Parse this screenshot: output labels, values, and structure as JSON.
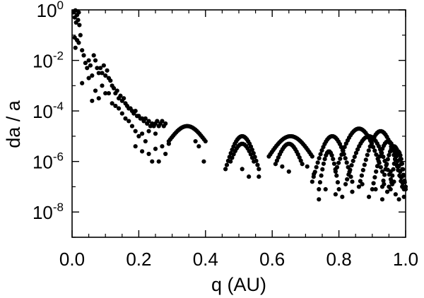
{
  "chart_data": {
    "type": "scatter",
    "title": "",
    "xlabel": "q (AU)",
    "ylabel": "da / a",
    "xlim": [
      0.0,
      1.0
    ],
    "ylim_log10": [
      -9,
      0
    ],
    "y_scale": "log",
    "grid": false,
    "legend": "none",
    "marker_color": "#000000",
    "x_ticks": [
      {
        "value": 0.0,
        "label": "0.0"
      },
      {
        "value": 0.2,
        "label": "0.2"
      },
      {
        "value": 0.4,
        "label": "0.4"
      },
      {
        "value": 0.6,
        "label": "0.6"
      },
      {
        "value": 0.8,
        "label": "0.8"
      },
      {
        "value": 1.0,
        "label": "1.0"
      }
    ],
    "y_ticks": [
      {
        "exp": 0,
        "base": "10",
        "power": "0"
      },
      {
        "exp": -2,
        "base": "10",
        "power": "-2"
      },
      {
        "exp": -4,
        "base": "10",
        "power": "-4"
      },
      {
        "exp": -6,
        "base": "10",
        "power": "-6"
      },
      {
        "exp": -8,
        "base": "10",
        "power": "-8"
      }
    ],
    "series": [
      {
        "points": [
          [
            0.005,
            -0.1
          ],
          [
            0.008,
            -0.3
          ],
          [
            0.01,
            -0.02
          ],
          [
            0.012,
            -0.5
          ],
          [
            0.015,
            -0.2
          ],
          [
            0.018,
            -0.4
          ],
          [
            0.02,
            -0.1
          ],
          [
            0.022,
            -0.6
          ],
          [
            0.008,
            -1.1
          ],
          [
            0.01,
            -1.5
          ],
          [
            0.015,
            -1.2
          ],
          [
            0.02,
            -1.3
          ],
          [
            0.025,
            -1.0
          ],
          [
            0.03,
            -1.6
          ],
          [
            0.035,
            -1.8
          ],
          [
            0.04,
            -2.1
          ],
          [
            0.045,
            -2.3
          ],
          [
            0.05,
            -2.0
          ],
          [
            0.055,
            -2.2
          ],
          [
            0.06,
            -2.6
          ],
          [
            0.065,
            -1.8
          ],
          [
            0.07,
            -2.0
          ],
          [
            0.075,
            -2.3
          ],
          [
            0.08,
            -2.5
          ],
          [
            0.085,
            -2.3
          ],
          [
            0.09,
            -2.5
          ],
          [
            0.095,
            -2.2
          ],
          [
            0.1,
            -2.6
          ],
          [
            0.105,
            -2.4
          ],
          [
            0.11,
            -2.7
          ],
          [
            0.115,
            -2.8
          ],
          [
            0.12,
            -3.0
          ],
          [
            0.125,
            -3.1
          ],
          [
            0.13,
            -3.3
          ],
          [
            0.135,
            -3.2
          ],
          [
            0.14,
            -3.5
          ],
          [
            0.145,
            -3.4
          ],
          [
            0.15,
            -3.6
          ],
          [
            0.155,
            -3.5
          ],
          [
            0.16,
            -3.7
          ],
          [
            0.165,
            -3.8
          ],
          [
            0.17,
            -3.9
          ],
          [
            0.175,
            -3.9
          ],
          [
            0.18,
            -4.0
          ],
          [
            0.185,
            -4.1
          ],
          [
            0.19,
            -4.0
          ],
          [
            0.195,
            -4.2
          ],
          [
            0.2,
            -4.2
          ],
          [
            0.205,
            -4.3
          ],
          [
            0.21,
            -4.3
          ],
          [
            0.215,
            -4.4
          ],
          [
            0.22,
            -4.3
          ],
          [
            0.225,
            -4.5
          ],
          [
            0.23,
            -4.4
          ],
          [
            0.235,
            -4.6
          ],
          [
            0.24,
            -4.5
          ],
          [
            0.245,
            -4.6
          ],
          [
            0.25,
            -4.5
          ],
          [
            0.255,
            -4.4
          ],
          [
            0.26,
            -4.6
          ],
          [
            0.265,
            -4.5
          ],
          [
            0.27,
            -4.4
          ],
          [
            0.275,
            -4.6
          ],
          [
            0.28,
            -4.5
          ],
          [
            0.06,
            -3.6
          ],
          [
            0.08,
            -3.5
          ],
          [
            0.1,
            -3.3
          ],
          [
            0.12,
            -3.7
          ],
          [
            0.14,
            -3.9
          ],
          [
            0.16,
            -4.3
          ],
          [
            0.18,
            -4.6
          ],
          [
            0.19,
            -5.4
          ],
          [
            0.2,
            -5.0
          ],
          [
            0.21,
            -5.6
          ],
          [
            0.22,
            -5.2
          ],
          [
            0.23,
            -5.7
          ],
          [
            0.24,
            -6.0
          ],
          [
            0.25,
            -5.5
          ],
          [
            0.26,
            -6.0
          ],
          [
            0.27,
            -5.4
          ],
          [
            0.28,
            -5.7
          ],
          [
            0.29,
            -5.3
          ],
          [
            0.03,
            -2.9
          ],
          [
            0.05,
            -2.7
          ],
          [
            0.07,
            -3.2
          ],
          [
            0.09,
            -3.0
          ],
          [
            0.11,
            -3.3
          ],
          [
            0.13,
            -3.8
          ],
          [
            0.15,
            -4.1
          ],
          [
            0.17,
            -4.4
          ],
          [
            0.19,
            -4.8
          ],
          [
            0.21,
            -4.9
          ],
          [
            0.23,
            -4.8
          ],
          [
            0.25,
            -4.9
          ]
        ]
      }
    ],
    "lobes": [
      {
        "x_start": 0.29,
        "x_end": 0.4,
        "y_low": -5.2,
        "y_high": -4.6,
        "n": 26
      },
      {
        "x_start": 0.46,
        "x_end": 0.56,
        "y_low": -6.3,
        "y_high": -5.0,
        "n": 26
      },
      {
        "x_start": 0.475,
        "x_end": 0.545,
        "y_low": -6.0,
        "y_high": -5.3,
        "n": 16
      },
      {
        "x_start": 0.59,
        "x_end": 0.72,
        "y_low": -5.8,
        "y_high": -5.0,
        "n": 30
      },
      {
        "x_start": 0.61,
        "x_end": 0.69,
        "y_low": -6.1,
        "y_high": -5.3,
        "n": 20
      },
      {
        "x_start": 0.72,
        "x_end": 0.84,
        "y_low": -6.8,
        "y_high": -5.0,
        "n": 30
      },
      {
        "x_start": 0.74,
        "x_end": 0.8,
        "y_low": -7.1,
        "y_high": -5.6,
        "n": 18
      },
      {
        "x_start": 0.79,
        "x_end": 0.93,
        "y_low": -6.4,
        "y_high": -4.7,
        "n": 32
      },
      {
        "x_start": 0.82,
        "x_end": 0.96,
        "y_low": -6.9,
        "y_high": -5.0,
        "n": 32
      },
      {
        "x_start": 0.86,
        "x_end": 0.99,
        "y_low": -7.0,
        "y_high": -4.8,
        "n": 32
      },
      {
        "x_start": 0.9,
        "x_end": 0.995,
        "y_low": -7.1,
        "y_high": -5.2,
        "n": 26
      },
      {
        "x_start": 0.93,
        "x_end": 1.0,
        "y_low": -7.0,
        "y_high": -5.4,
        "n": 22
      },
      {
        "x_start": 0.955,
        "x_end": 1.0,
        "y_low": -7.1,
        "y_high": -5.6,
        "n": 18
      }
    ],
    "scatter_extra": [
      [
        0.74,
        -7.5
      ],
      [
        0.76,
        -7.1
      ],
      [
        0.79,
        -7.3
      ],
      [
        0.81,
        -7.4
      ],
      [
        0.84,
        -7.2
      ],
      [
        0.87,
        -6.9
      ],
      [
        0.89,
        -7.4
      ],
      [
        0.91,
        -7.1
      ],
      [
        0.93,
        -7.5
      ],
      [
        0.95,
        -7.0
      ],
      [
        0.97,
        -7.3
      ],
      [
        0.98,
        -7.5
      ],
      [
        0.99,
        -7.0
      ],
      [
        0.995,
        -7.4
      ],
      [
        0.985,
        -6.6
      ],
      [
        0.975,
        -6.2
      ],
      [
        0.965,
        -6.8
      ],
      [
        0.955,
        -6.4
      ],
      [
        0.945,
        -7.2
      ],
      [
        0.935,
        -6.9
      ],
      [
        0.725,
        -6.5
      ],
      [
        0.705,
        -6.2
      ],
      [
        0.51,
        -6.3
      ],
      [
        0.53,
        -6.6
      ],
      [
        0.38,
        -5.4
      ],
      [
        0.395,
        -6.0
      ],
      [
        0.37,
        -5.2
      ],
      [
        0.56,
        -6.6
      ],
      [
        0.63,
        -6.2
      ],
      [
        0.65,
        -6.4
      ]
    ]
  }
}
